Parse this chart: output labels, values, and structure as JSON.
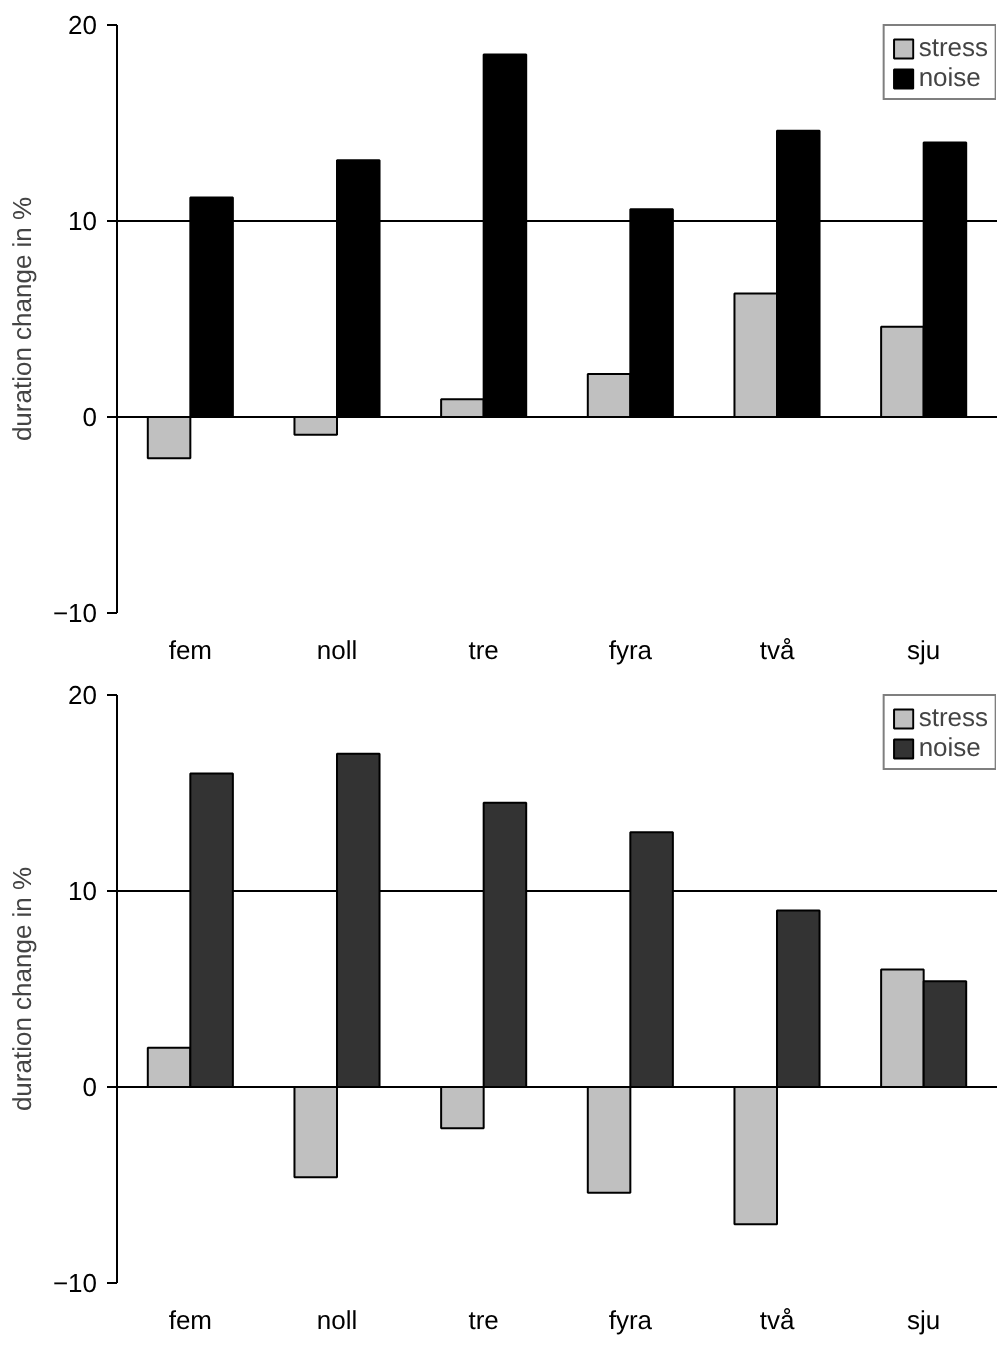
{
  "chart_data": [
    {
      "type": "bar",
      "ylabel": "duration change in %",
      "categories": [
        "fem",
        "noll",
        "tre",
        "fyra",
        "två",
        "sju"
      ],
      "ylim": [
        -10,
        20
      ],
      "yticks": [
        -10,
        0,
        10,
        20
      ],
      "grid": "y",
      "legend": "top right",
      "series": [
        {
          "name": "stress",
          "color": "#c0c0c0",
          "values": [
            -2.1,
            -0.9,
            0.9,
            2.2,
            6.3,
            4.6
          ]
        },
        {
          "name": "noise",
          "color": "#000000",
          "values": [
            11.2,
            13.1,
            18.5,
            10.6,
            14.6,
            14.0
          ]
        }
      ]
    },
    {
      "type": "bar",
      "ylabel": "duration change in %",
      "categories": [
        "fem",
        "noll",
        "tre",
        "fyra",
        "två",
        "sju"
      ],
      "ylim": [
        -10,
        20
      ],
      "yticks": [
        -10,
        0,
        10,
        20
      ],
      "grid": "y",
      "legend": "top right",
      "series": [
        {
          "name": "stress",
          "color": "#c0c0c0",
          "values": [
            2.0,
            -4.6,
            -2.1,
            -5.4,
            -7.0,
            6.0
          ]
        },
        {
          "name": "noise",
          "color": "#333333",
          "values": [
            16.0,
            17.0,
            14.5,
            13.0,
            9.0,
            5.4
          ]
        }
      ]
    }
  ]
}
